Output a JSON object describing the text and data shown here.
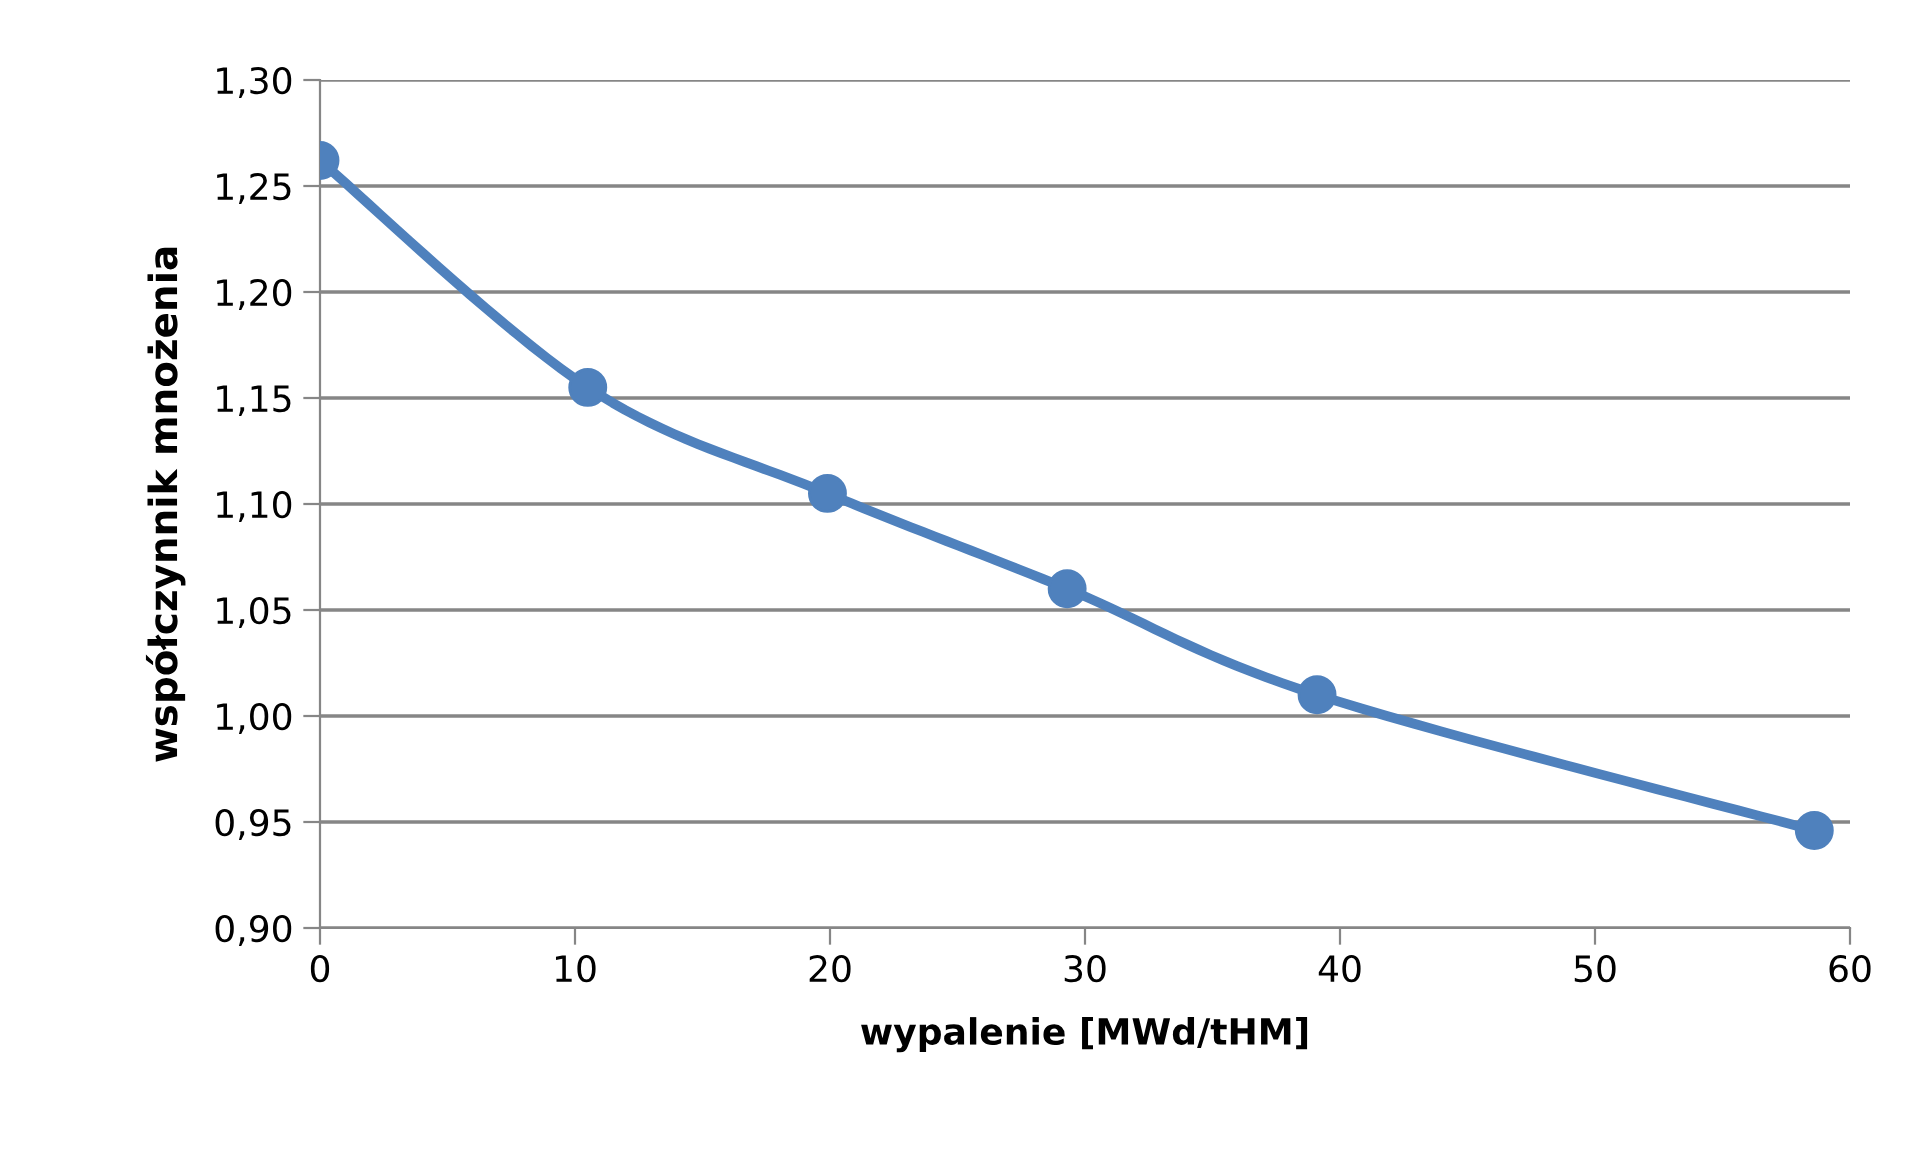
{
  "chart_data": {
    "type": "line",
    "xlabel": "wypalenie [MWd/tHM]",
    "ylabel": "współczynnik mnożenia",
    "x": [
      0,
      10.5,
      19.9,
      29.3,
      39.1,
      58.6
    ],
    "series": [
      {
        "color": "#4f81bd",
        "values": [
          1.262,
          1.155,
          1.105,
          1.06,
          1.01,
          0.946
        ]
      }
    ],
    "xlim": [
      0,
      60
    ],
    "xticks": [
      0,
      10,
      20,
      30,
      40,
      50,
      60
    ],
    "ylim": [
      0.9,
      1.3
    ],
    "yticks": [
      {
        "value": 0.9,
        "label": "0,90"
      },
      {
        "value": 0.95,
        "label": "0,95"
      },
      {
        "value": 1.0,
        "label": "1,00"
      },
      {
        "value": 1.05,
        "label": "1,05"
      },
      {
        "value": 1.1,
        "label": "1,10"
      },
      {
        "value": 1.15,
        "label": "1,15"
      },
      {
        "value": 1.2,
        "label": "1,20"
      },
      {
        "value": 1.25,
        "label": "1,25"
      },
      {
        "value": 1.3,
        "label": "1,30"
      }
    ],
    "grid": "y",
    "marker": "circle",
    "line_style": "solid",
    "legend": false
  }
}
